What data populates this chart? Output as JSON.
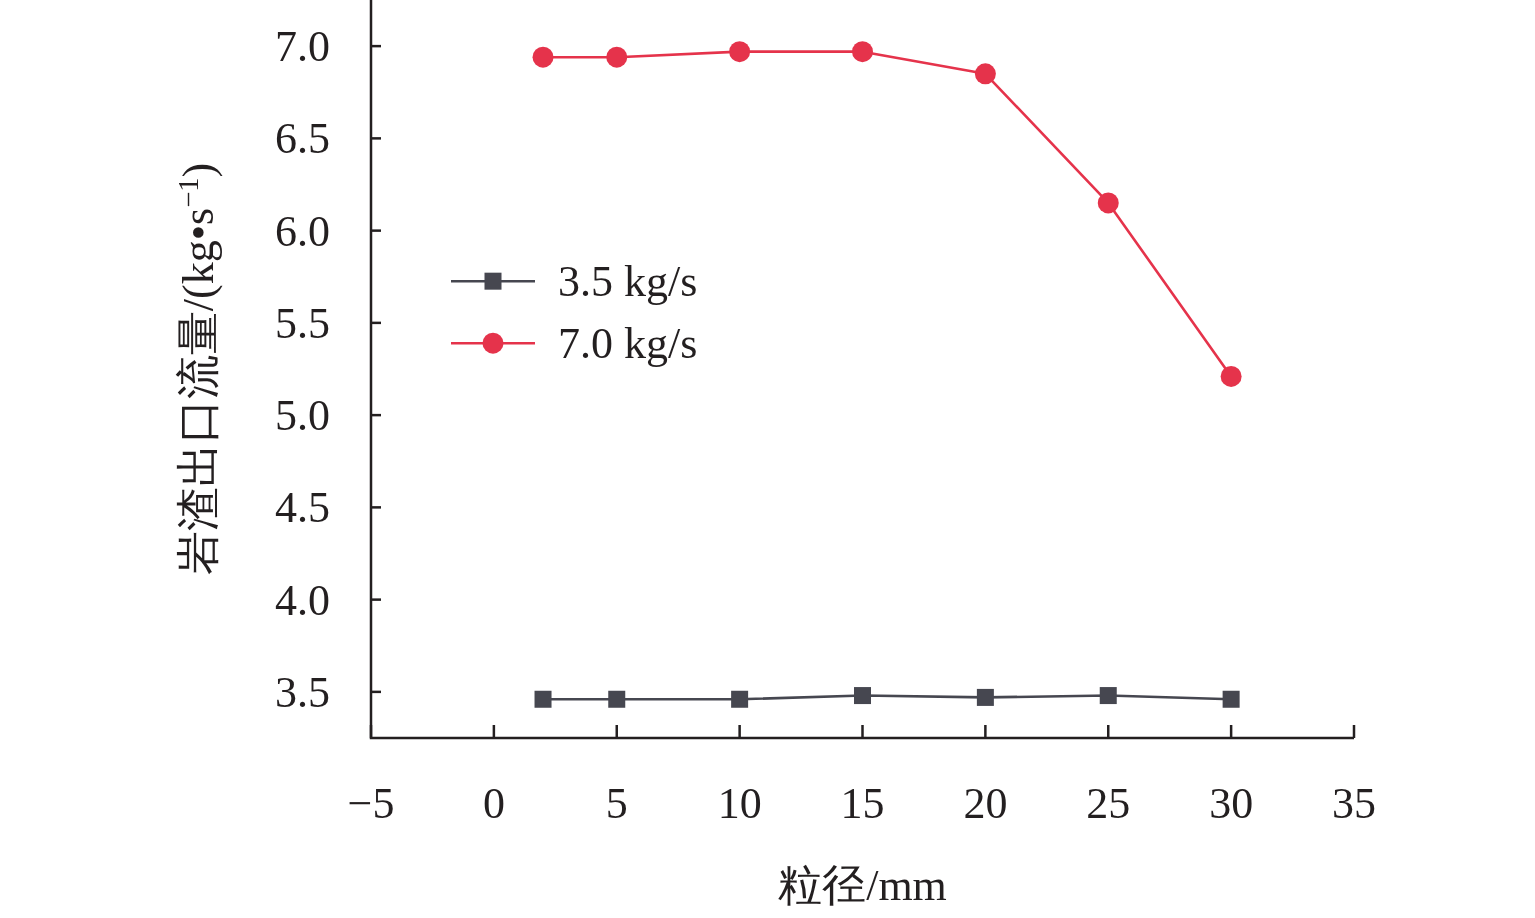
{
  "chart_data": {
    "type": "line",
    "xlabel": "粒径/mm",
    "ylabel": "岩渣出口流量/(kg•s$^{−1}$)",
    "x": [
      2,
      5,
      10,
      15,
      20,
      25,
      30
    ],
    "series": [
      {
        "name": "3.5 kg/s",
        "color": "#464750",
        "marker": "square",
        "values": [
          3.46,
          3.46,
          3.46,
          3.48,
          3.47,
          3.48,
          3.46
        ]
      },
      {
        "name": "7.0 kg/s",
        "color": "#e5334b",
        "marker": "circle",
        "values": [
          6.94,
          6.94,
          6.97,
          6.97,
          6.85,
          6.15,
          5.21
        ]
      }
    ],
    "xlim": [
      -5,
      35
    ],
    "xticks": [
      {
        "value": -5,
        "label": "−5"
      },
      0,
      5,
      10,
      15,
      20,
      25,
      30,
      35
    ],
    "ylim": [
      3.25,
      7.25
    ],
    "yticks": [
      3.5,
      {
        "value": 4,
        "label": "4.0"
      },
      4.5,
      {
        "value": 5,
        "label": "5.0"
      },
      5.5,
      {
        "value": 6,
        "label": "6.0"
      },
      6.5,
      {
        "value": 7,
        "label": "7.0"
      }
    ],
    "legend": "left",
    "line_style": "solid"
  }
}
